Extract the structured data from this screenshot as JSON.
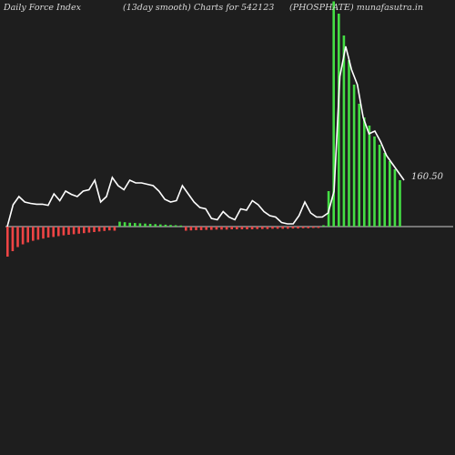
{
  "header": {
    "left": "Daily Force  Index",
    "center": "(13day smooth) Charts for 542123",
    "right": "(PHOSPHATE) munafasutra.in"
  },
  "colors": {
    "background": "#1e1e1e",
    "positive": "#44dd44",
    "negative": "#ee4444",
    "line": "#ffffff",
    "zero_line": "#cccccc"
  },
  "chart_data": {
    "type": "bar",
    "title": "",
    "xlabel": "",
    "ylabel": "",
    "last_value_label": "160.50",
    "ylim": [
      -110,
      830
    ],
    "bars": [
      -110,
      -90,
      -75,
      -65,
      -58,
      -52,
      -48,
      -44,
      -40,
      -38,
      -35,
      -32,
      -30,
      -28,
      -26,
      -24,
      -22,
      -20,
      -18,
      -16,
      -14,
      -15,
      18,
      16,
      14,
      13,
      12,
      11,
      10,
      9,
      8,
      7,
      6,
      5,
      4,
      -15,
      -14,
      -13,
      -13,
      -12,
      -12,
      -11,
      -11,
      -11,
      -10,
      -10,
      -10,
      -10,
      -10,
      -9,
      -9,
      -9,
      -8,
      -8,
      -8,
      -8,
      -7,
      -7,
      -6,
      -6,
      -5,
      -5,
      5,
      130,
      825,
      780,
      700,
      610,
      520,
      450,
      400,
      370,
      330,
      300,
      270,
      240,
      210,
      170
    ],
    "smooth_line": [
      0,
      80,
      110,
      90,
      85,
      82,
      82,
      78,
      120,
      95,
      130,
      118,
      110,
      130,
      135,
      170,
      90,
      110,
      180,
      150,
      135,
      170,
      160,
      160,
      155,
      150,
      130,
      100,
      90,
      95,
      150,
      120,
      90,
      70,
      65,
      30,
      25,
      55,
      35,
      25,
      65,
      60,
      95,
      80,
      55,
      40,
      35,
      15,
      10,
      10,
      40,
      90,
      50,
      35,
      35,
      50,
      130,
      550,
      660,
      575,
      520,
      400,
      340,
      350,
      310,
      260,
      230,
      200,
      170
    ]
  }
}
